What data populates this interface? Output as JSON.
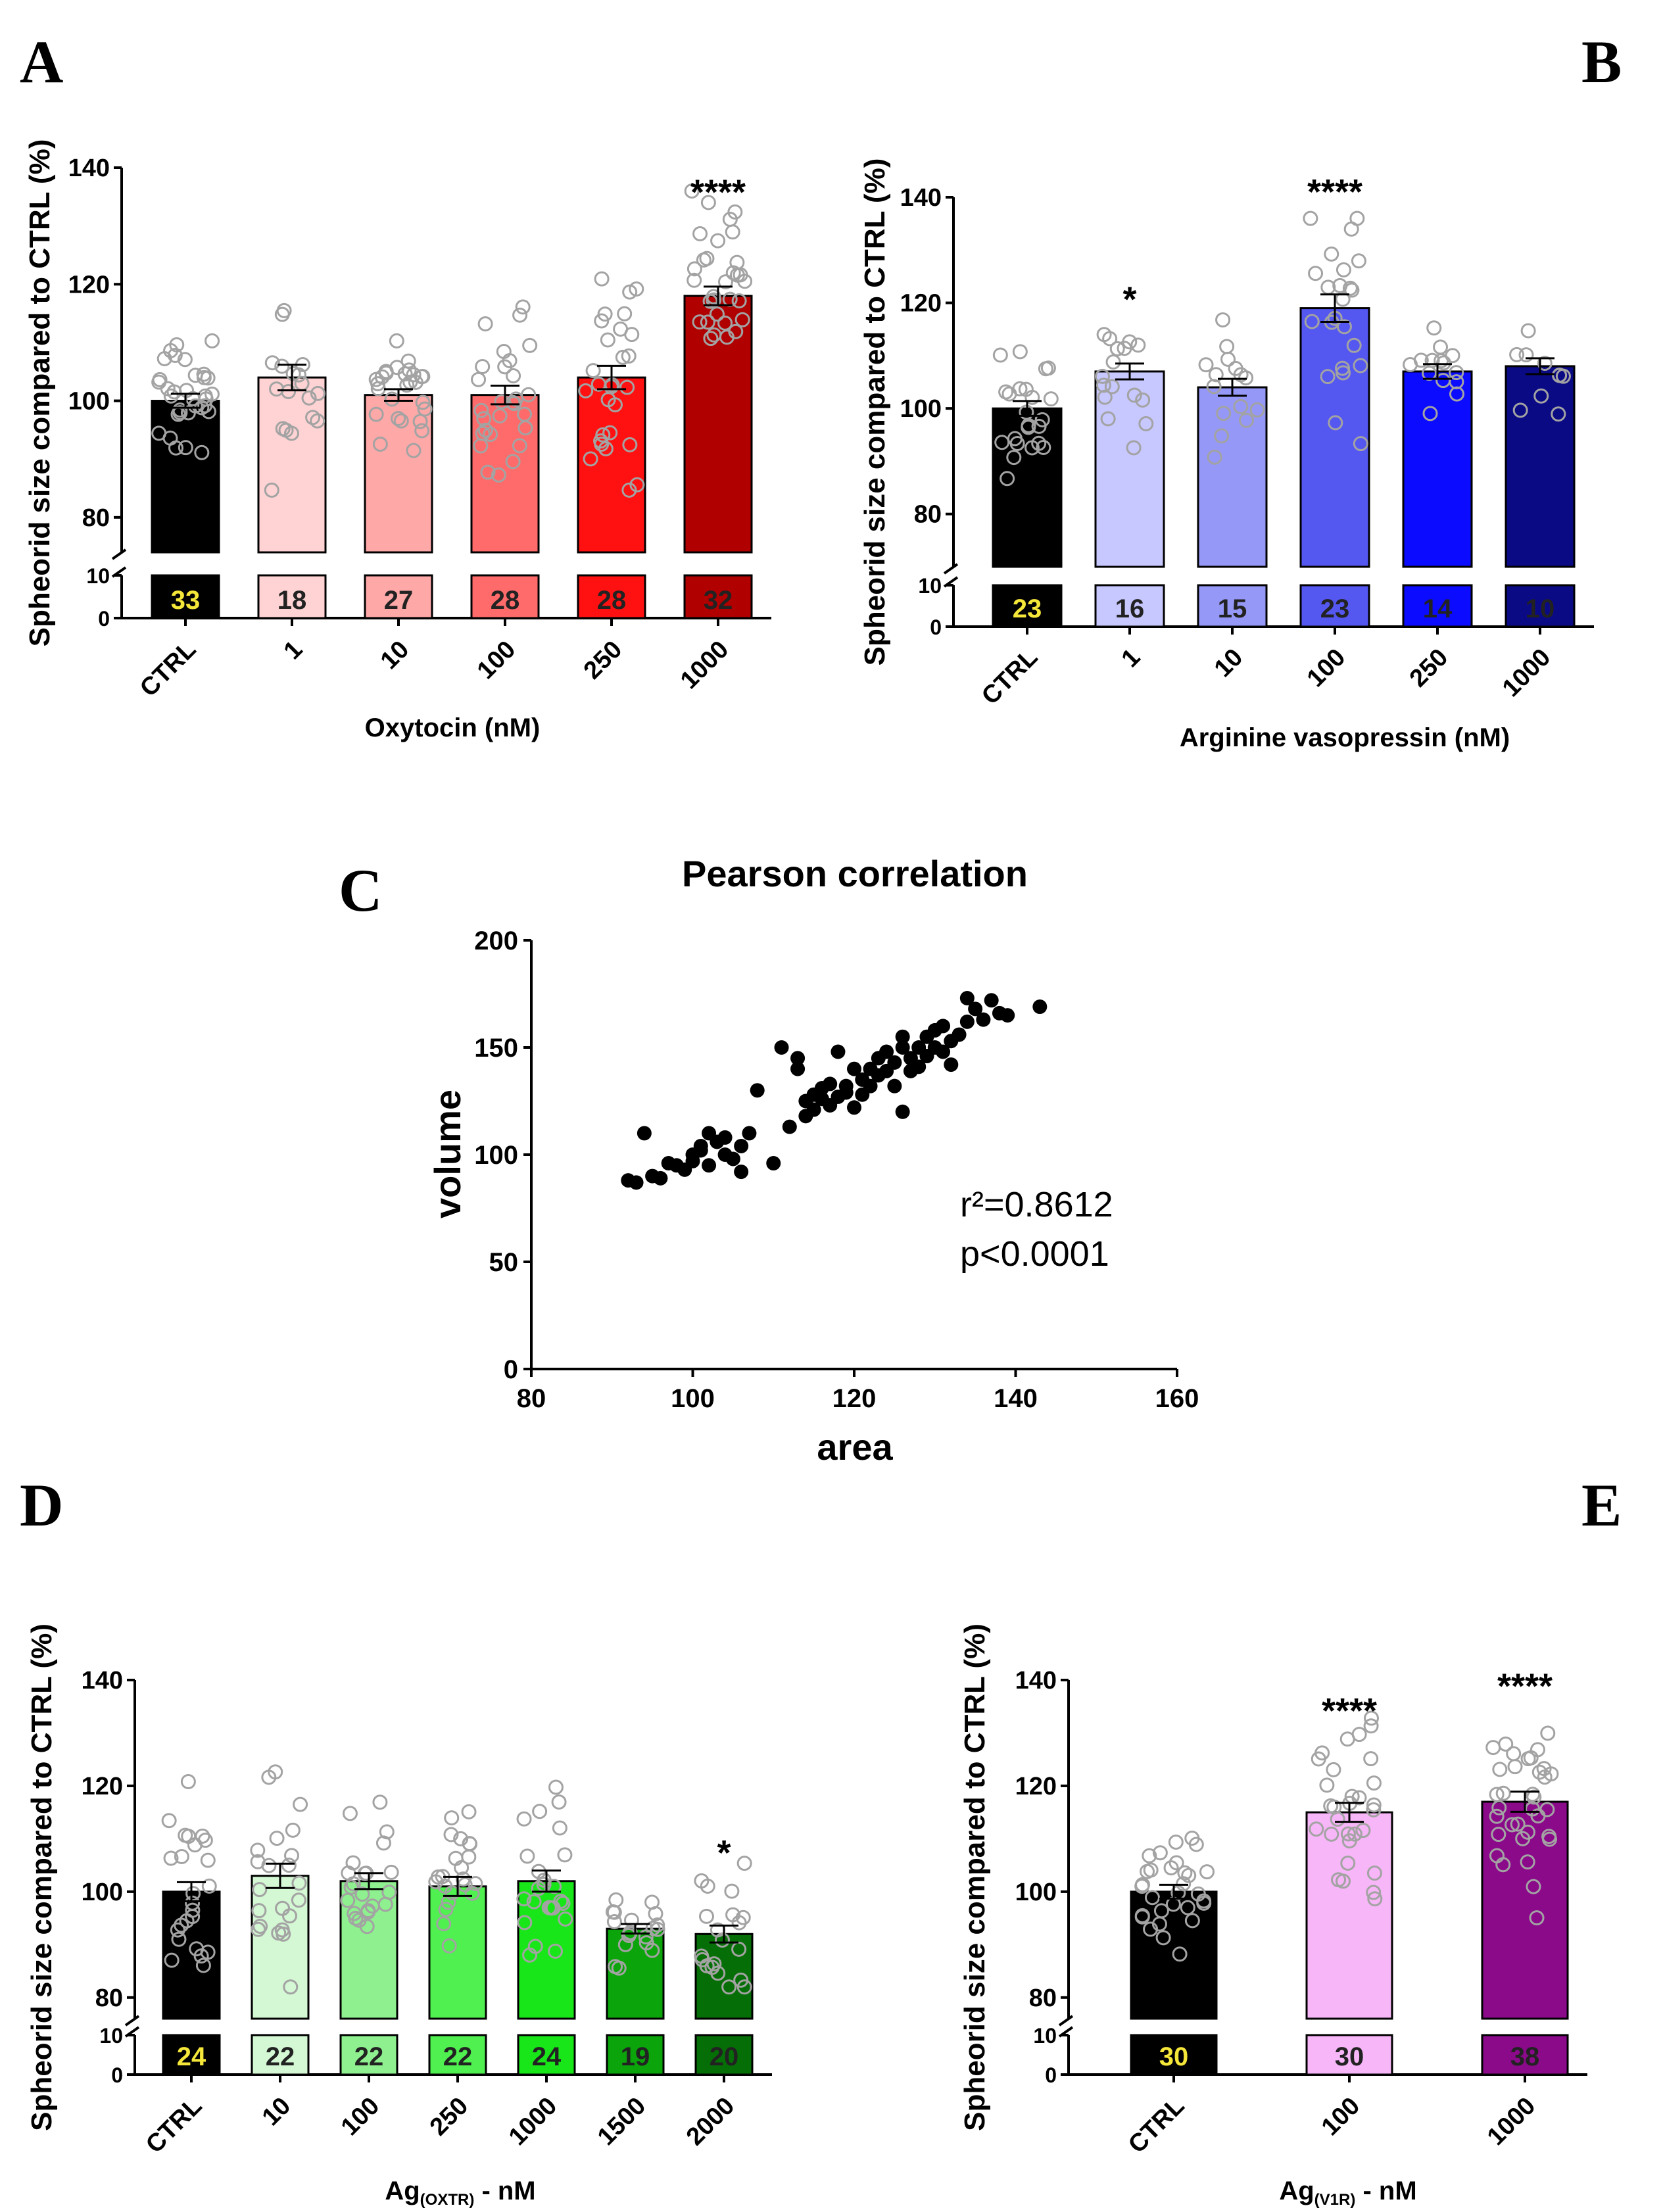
{
  "panels": {
    "A": {
      "letter": "A"
    },
    "B": {
      "letter": "B"
    },
    "C": {
      "letter": "C"
    },
    "D": {
      "letter": "D"
    },
    "E": {
      "letter": "E"
    }
  },
  "chart_data": [
    {
      "id": "A",
      "type": "bar",
      "ylabel": "Spheorid size compared to CTRL (%)",
      "xlabel": "Oxytocin (nM)",
      "yticks_upper": [
        80,
        100,
        120,
        140
      ],
      "yticks_lower": [
        0,
        10
      ],
      "ylim_upper": [
        74,
        140
      ],
      "ylim_lower": [
        0,
        10
      ],
      "categories": [
        "CTRL",
        "1",
        "10",
        "100",
        "250",
        "1000"
      ],
      "values": [
        100,
        104,
        101,
        101,
        104,
        118
      ],
      "sem": [
        1.2,
        2.2,
        1.0,
        1.6,
        2.0,
        1.6
      ],
      "n": [
        "33",
        "18",
        "27",
        "28",
        "28",
        "32"
      ],
      "significance": [
        "",
        "",
        "",
        "",
        "",
        "****"
      ],
      "colors": [
        "#000000",
        "#ffd3d3",
        "#ffa8a8",
        "#ff6b6b",
        "#ff1111",
        "#b00000"
      ],
      "nlabel_colors": [
        "#f5e63a",
        "#222222",
        "#222222",
        "#222222",
        "#222222",
        "#222222"
      ]
    },
    {
      "id": "B",
      "type": "bar",
      "ylabel": "Spheorid size compared to CTRL (%)",
      "xlabel": "Arginine vasopressin (nM)",
      "yticks_upper": [
        80,
        100,
        120,
        140
      ],
      "yticks_lower": [
        0,
        10
      ],
      "ylim_upper": [
        70,
        140
      ],
      "ylim_lower": [
        0,
        10
      ],
      "categories": [
        "CTRL",
        "1",
        "10",
        "100",
        "250",
        "1000"
      ],
      "values": [
        100,
        107,
        104,
        119,
        107,
        108
      ],
      "sem": [
        1.4,
        1.5,
        1.6,
        2.6,
        1.4,
        1.5
      ],
      "n": [
        "23",
        "16",
        "15",
        "23",
        "14",
        "10"
      ],
      "significance": [
        "",
        "*",
        "",
        "****",
        "",
        ""
      ],
      "colors": [
        "#000000",
        "#c7c8ff",
        "#9598f7",
        "#5457f0",
        "#0b0bff",
        "#0a0a85"
      ],
      "nlabel_colors": [
        "#f5e63a",
        "#222222",
        "#222222",
        "#222222",
        "#222222",
        "#222222"
      ]
    },
    {
      "id": "C",
      "type": "scatter",
      "title": "Pearson correlation",
      "xlabel": "area",
      "ylabel": "volume",
      "xlim": [
        80,
        160
      ],
      "ylim": [
        0,
        200
      ],
      "xticks": [
        80,
        100,
        120,
        140,
        160
      ],
      "yticks": [
        0,
        50,
        100,
        150,
        200
      ],
      "r2_text": "r²=0.8612",
      "p_text": "p<0.0001",
      "points": [
        [
          92,
          88
        ],
        [
          93,
          87
        ],
        [
          94,
          110
        ],
        [
          95,
          90
        ],
        [
          96,
          89
        ],
        [
          97,
          96
        ],
        [
          98,
          95
        ],
        [
          99,
          93
        ],
        [
          100,
          97
        ],
        [
          100,
          100
        ],
        [
          101,
          102
        ],
        [
          101,
          104
        ],
        [
          102,
          110
        ],
        [
          102,
          95
        ],
        [
          103,
          106
        ],
        [
          104,
          108
        ],
        [
          104,
          100
        ],
        [
          105,
          98
        ],
        [
          106,
          104
        ],
        [
          106,
          92
        ],
        [
          107,
          110
        ],
        [
          108,
          130
        ],
        [
          110,
          96
        ],
        [
          111,
          150
        ],
        [
          112,
          113
        ],
        [
          113,
          145
        ],
        [
          114,
          125
        ],
        [
          114,
          118
        ],
        [
          115,
          128
        ],
        [
          115,
          121
        ],
        [
          116,
          131
        ],
        [
          116,
          126
        ],
        [
          117,
          133
        ],
        [
          117,
          123
        ],
        [
          118,
          127
        ],
        [
          119,
          129
        ],
        [
          119,
          132
        ],
        [
          120,
          122
        ],
        [
          121,
          135
        ],
        [
          121,
          128
        ],
        [
          122,
          140
        ],
        [
          122,
          132
        ],
        [
          123,
          145
        ],
        [
          123,
          137
        ],
        [
          124,
          139
        ],
        [
          124,
          148
        ],
        [
          125,
          143
        ],
        [
          125,
          132
        ],
        [
          126,
          150
        ],
        [
          126,
          155
        ],
        [
          127,
          139
        ],
        [
          127,
          145
        ],
        [
          128,
          150
        ],
        [
          128,
          141
        ],
        [
          129,
          146
        ],
        [
          129,
          155
        ],
        [
          130,
          150
        ],
        [
          130,
          158
        ],
        [
          131,
          148
        ],
        [
          131,
          160
        ],
        [
          132,
          153
        ],
        [
          132,
          142
        ],
        [
          133,
          156
        ],
        [
          134,
          173
        ],
        [
          134,
          162
        ],
        [
          135,
          168
        ],
        [
          136,
          163
        ],
        [
          137,
          172
        ],
        [
          138,
          166
        ],
        [
          139,
          165
        ],
        [
          143,
          169
        ],
        [
          126,
          120
        ],
        [
          120,
          140
        ],
        [
          118,
          148
        ],
        [
          113,
          140
        ]
      ]
    },
    {
      "id": "D",
      "type": "bar",
      "ylabel": "Spheorid size compared to CTRL (%)",
      "xlabel": "Ag(OXTR) - nM",
      "yticks_upper": [
        80,
        100,
        120,
        140
      ],
      "yticks_lower": [
        0,
        10
      ],
      "ylim_upper": [
        76,
        140
      ],
      "ylim_lower": [
        0,
        10
      ],
      "categories": [
        "CTRL",
        "10",
        "100",
        "250",
        "1000",
        "1500",
        "2000"
      ],
      "values": [
        100,
        103,
        102,
        101,
        102,
        93,
        92
      ],
      "sem": [
        1.8,
        2.3,
        1.5,
        1.8,
        2.0,
        0.9,
        1.6
      ],
      "n": [
        "24",
        "22",
        "22",
        "22",
        "24",
        "19",
        "20"
      ],
      "significance": [
        "",
        "",
        "",
        "",
        "",
        "",
        "*"
      ],
      "colors": [
        "#000000",
        "#d4f7d4",
        "#8ef08e",
        "#4ff04f",
        "#19e619",
        "#0ba50b",
        "#066e06"
      ],
      "nlabel_colors": [
        "#f5e63a",
        "#222222",
        "#222222",
        "#222222",
        "#222222",
        "#222222",
        "#222222"
      ]
    },
    {
      "id": "E",
      "type": "bar",
      "ylabel": "Spheorid size compared to CTRL (%)",
      "xlabel": "Ag(V1R) - nM",
      "yticks_upper": [
        80,
        100,
        120,
        140
      ],
      "yticks_lower": [
        0,
        10
      ],
      "ylim_upper": [
        76,
        140
      ],
      "ylim_lower": [
        0,
        10
      ],
      "categories": [
        "CTRL",
        "100",
        "1000"
      ],
      "values": [
        100,
        115,
        117
      ],
      "sem": [
        1.3,
        1.8,
        1.9
      ],
      "n": [
        "30",
        "30",
        "38"
      ],
      "significance": [
        "",
        "****",
        "****"
      ],
      "colors": [
        "#000000",
        "#f7b6f7",
        "#8a0a8a"
      ],
      "nlabel_colors": [
        "#f5e63a",
        "#222222",
        "#222222"
      ]
    }
  ]
}
